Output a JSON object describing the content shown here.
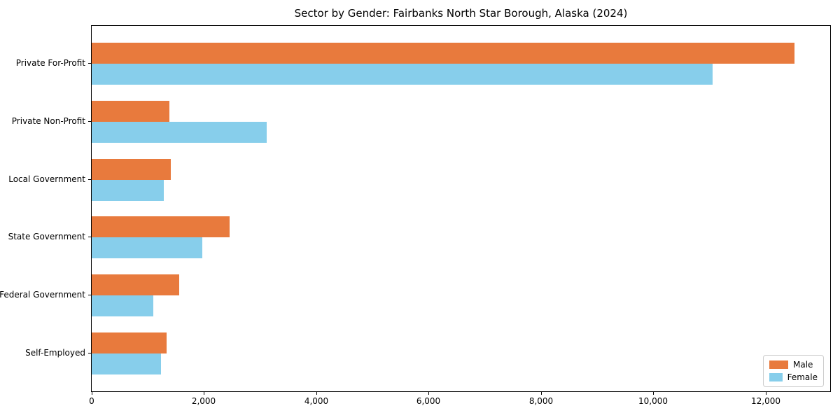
{
  "chart_data": {
    "type": "bar",
    "orientation": "horizontal",
    "title": "Sector by Gender: Fairbanks North Star Borough, Alaska (2024)",
    "categories": [
      "Private For-Profit",
      "Private Non-Profit",
      "Local Government",
      "State Government",
      "Federal Government",
      "Self-Employed"
    ],
    "series": [
      {
        "name": "Male",
        "color": "#e87a3d",
        "values": [
          12520,
          1380,
          1410,
          2460,
          1560,
          1330
        ]
      },
      {
        "name": "Female",
        "color": "#87ceeb",
        "values": [
          11050,
          3110,
          1290,
          1970,
          1100,
          1240
        ]
      }
    ],
    "xlabel": "",
    "ylabel": "",
    "xlim": [
      0,
      13150
    ],
    "x_ticks": [
      0,
      2000,
      4000,
      6000,
      8000,
      10000,
      12000
    ],
    "x_tick_labels": [
      "0",
      "2,000",
      "4,000",
      "6,000",
      "8,000",
      "10,000",
      "12,000"
    ],
    "grid": false,
    "legend_position": "lower right",
    "spine_color": "#000000",
    "background_color": "#ffffff"
  }
}
